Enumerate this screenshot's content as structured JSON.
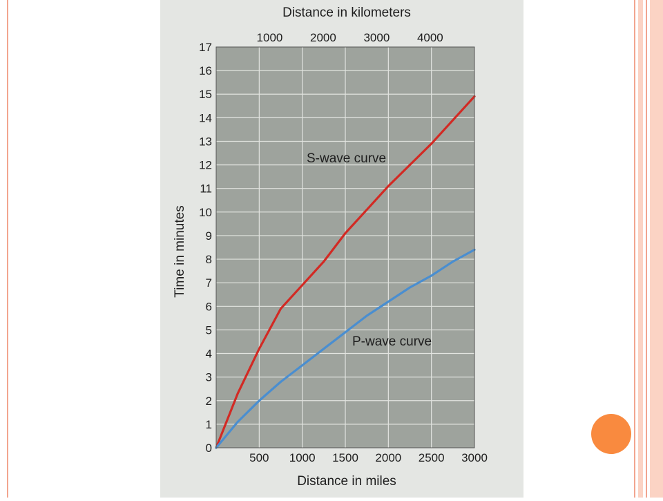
{
  "slide": {
    "accent_colors": {
      "border": "#f2a58f",
      "light_stripe": "#fbd3c4",
      "dot": "#f98a3f"
    }
  },
  "chart_data": {
    "type": "line",
    "title": "",
    "xlabel": "Distance in miles",
    "ylabel": "Time in minutes",
    "x2label": "Distance in kilometers",
    "xlim": [
      0,
      3000
    ],
    "ylim": [
      0,
      17
    ],
    "xticks": [
      500,
      1000,
      1500,
      2000,
      2500,
      3000
    ],
    "x_tick_labels": [
      "500",
      "1000",
      "1500",
      "2000",
      "2500",
      "3000"
    ],
    "yticks": [
      0,
      1,
      2,
      3,
      4,
      5,
      6,
      7,
      8,
      9,
      10,
      11,
      12,
      13,
      14,
      15,
      16,
      17
    ],
    "y_tick_labels": [
      "0",
      "1",
      "2",
      "3",
      "4",
      "5",
      "6",
      "7",
      "8",
      "9",
      "10",
      "11",
      "12",
      "13",
      "14",
      "15",
      "16",
      "17"
    ],
    "x2ticks": [
      1000,
      2000,
      3000,
      4000
    ],
    "x2_tick_labels": [
      "1000",
      "2000",
      "3000",
      "4000"
    ],
    "grid": true,
    "plot_background": "#9ea39d",
    "series": [
      {
        "name": "S-wave curve",
        "color": "#d22a24",
        "x": [
          0,
          250,
          500,
          750,
          1000,
          1250,
          1500,
          1750,
          2000,
          2250,
          2500,
          2750,
          3000
        ],
        "y": [
          0,
          2.3,
          4.2,
          5.9,
          6.9,
          7.9,
          9.1,
          10.1,
          11.1,
          12.0,
          12.9,
          13.9,
          14.9
        ]
      },
      {
        "name": "P-wave curve",
        "color": "#4a8ed0",
        "x": [
          0,
          250,
          500,
          750,
          1000,
          1250,
          1500,
          1750,
          2000,
          2250,
          2500,
          2750,
          3000
        ],
        "y": [
          0,
          1.1,
          2.0,
          2.8,
          3.5,
          4.2,
          4.9,
          5.6,
          6.2,
          6.8,
          7.3,
          7.9,
          8.4
        ]
      }
    ]
  }
}
